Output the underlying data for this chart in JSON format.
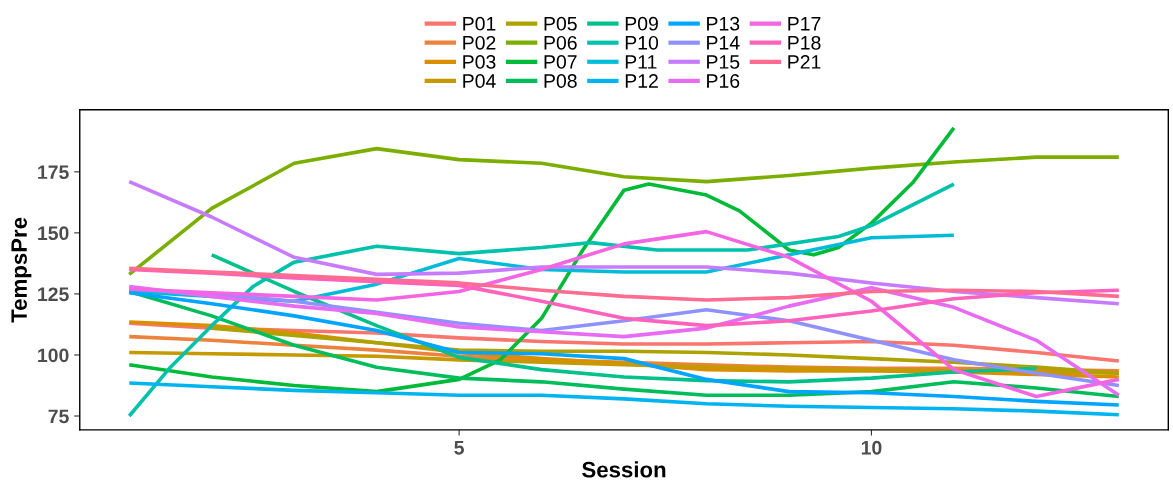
{
  "chart_data": {
    "type": "line",
    "xlabel": "Session",
    "ylabel": "TempsPre",
    "xlim": [
      0.4,
      13.6
    ],
    "ylim": [
      69.3,
      200.4
    ],
    "xticks": [
      5,
      10
    ],
    "yticks": [
      75,
      100,
      125,
      150,
      175
    ],
    "grid": false,
    "legend": "top",
    "marker": "none",
    "line_style": "solid",
    "x": [
      1,
      2,
      3,
      4,
      5,
      6,
      7,
      8,
      9,
      10,
      11,
      12,
      13
    ],
    "series": [
      {
        "name": "P01",
        "color": "#f8766d",
        "values": [
          113,
          111,
          110,
          109,
          107,
          105.5,
          104.5,
          104.5,
          105,
          105.5,
          104,
          101,
          97.5
        ]
      },
      {
        "name": "P02",
        "color": "#ec823c",
        "values": [
          107.5,
          106,
          104,
          102,
          99.5,
          98,
          97,
          96,
          95,
          94.5,
          94.5,
          94,
          93.5
        ]
      },
      {
        "name": "P03",
        "color": "#db8e00",
        "values": [
          113.5,
          112,
          109,
          105,
          101,
          98.5,
          96.5,
          94,
          93.5,
          93.5,
          93,
          92,
          91
        ]
      },
      {
        "name": "P04",
        "color": "#c59900",
        "values": [
          101,
          100.5,
          100,
          99.5,
          98,
          97,
          96,
          95,
          94.5,
          94,
          93.5,
          93,
          92.5
        ]
      },
      {
        "name": "P05",
        "color": "#aea200",
        "x": [
          2,
          3,
          4,
          5,
          6,
          7,
          8,
          9,
          10,
          11,
          12,
          13
        ],
        "values": [
          111,
          108,
          105,
          102,
          101.5,
          101.5,
          101,
          100,
          98.5,
          97,
          95,
          92.5
        ]
      },
      {
        "name": "P06",
        "color": "#7cae00",
        "values": [
          133,
          160,
          178.5,
          184.5,
          180,
          178.5,
          173,
          171,
          173.5,
          176.5,
          179,
          181,
          181
        ]
      },
      {
        "name": "P07",
        "color": "#00ba38",
        "x": [
          1,
          2,
          3,
          4,
          5,
          5.5,
          6,
          6.5,
          7,
          7.3,
          8,
          8.4,
          9,
          9.3,
          9.6,
          10,
          10.5,
          11
        ],
        "values": [
          96,
          91,
          87.5,
          85,
          90,
          98,
          115,
          143,
          167.5,
          170,
          165.5,
          159,
          143,
          141,
          144,
          154,
          170.5,
          193
        ]
      },
      {
        "name": "P08",
        "color": "#00bd5c",
        "values": [
          126,
          116,
          104,
          95,
          90.5,
          89,
          86,
          83.5,
          83.5,
          85,
          89,
          86.5,
          83
        ]
      },
      {
        "name": "P09",
        "color": "#00c08b",
        "x": [
          2,
          3,
          4,
          5,
          6,
          7,
          8,
          9,
          10,
          11,
          12
        ],
        "values": [
          141,
          126,
          112,
          99,
          94,
          91,
          89.5,
          89,
          90.5,
          93,
          94.5
        ]
      },
      {
        "name": "P10",
        "color": "#00c1ab",
        "x": [
          1,
          1.5,
          2,
          2.5,
          3,
          4,
          5,
          6,
          6.6,
          7.4,
          8.5,
          9.6,
          10,
          11
        ],
        "values": [
          75,
          95,
          112,
          128,
          138,
          144.5,
          141.5,
          144,
          146,
          143,
          143,
          148.5,
          153,
          170
        ]
      },
      {
        "name": "P11",
        "color": "#00bcd8",
        "values": [
          126,
          124,
          122,
          129,
          139.5,
          135,
          134,
          134,
          141,
          148,
          149,
          null,
          null
        ]
      },
      {
        "name": "P12",
        "color": "#00b4f0",
        "values": [
          88.5,
          87,
          85.5,
          84.5,
          83.5,
          83.5,
          82,
          80,
          79,
          78.5,
          78,
          77,
          75.5
        ]
      },
      {
        "name": "P13",
        "color": "#00a5ff",
        "values": [
          125.5,
          121,
          116,
          110,
          101,
          100.5,
          98.5,
          90,
          85,
          84.5,
          83,
          81,
          79.5
        ]
      },
      {
        "name": "P14",
        "color": "#8f91ff",
        "values": [
          127,
          125,
          122,
          117.5,
          113,
          110,
          114,
          118.5,
          114,
          106,
          98,
          92.5,
          87.5
        ]
      },
      {
        "name": "P15",
        "color": "#c77cff",
        "values": [
          171,
          156.5,
          140,
          133,
          133.5,
          136,
          136,
          136,
          133.5,
          129.5,
          126,
          123.5,
          121
        ]
      },
      {
        "name": "P16",
        "color": "#e76bf3",
        "values": [
          128,
          124,
          120,
          117,
          111.5,
          109.5,
          107.5,
          111,
          120,
          127.5,
          119.5,
          106,
          83.5
        ]
      },
      {
        "name": "P17",
        "color": "#f564e3",
        "values": [
          127,
          125.5,
          124,
          122.5,
          126,
          135,
          145.5,
          150.5,
          140,
          122,
          94,
          83,
          90
        ]
      },
      {
        "name": "P18",
        "color": "#ff62bc",
        "values": [
          135,
          133.5,
          131.5,
          130,
          128.5,
          122,
          115,
          112,
          114,
          118,
          123,
          125.5,
          126.5
        ]
      },
      {
        "name": "P21",
        "color": "#ff6c91",
        "values": [
          135.5,
          134,
          132.5,
          131,
          129.5,
          126.5,
          124,
          122.5,
          123.5,
          126,
          126.5,
          126,
          124
        ]
      }
    ]
  }
}
